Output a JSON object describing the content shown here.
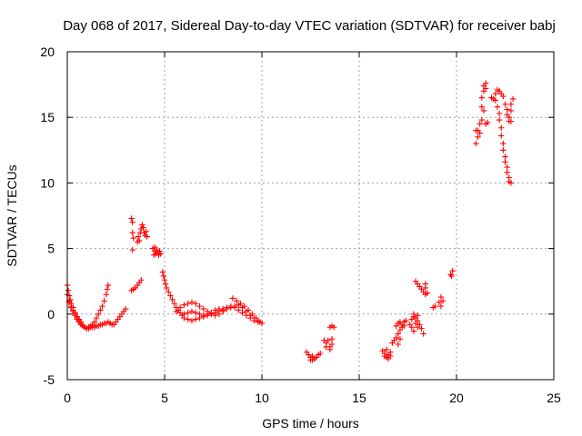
{
  "chart_data": {
    "type": "scatter",
    "title": "Day 068 of 2017, Sidereal Day-to-day VTEC variation (SDTVAR) for receiver babj",
    "xlabel": "GPS time / hours",
    "ylabel": "SDTVAR / TECUs",
    "xlim": [
      0,
      25
    ],
    "ylim": [
      -5,
      20
    ],
    "xticks": [
      "0",
      "5",
      "10",
      "15",
      "20",
      "25"
    ],
    "yticks": [
      "-5",
      "0",
      "5",
      "10",
      "15",
      "20"
    ],
    "grid": true,
    "marker": "+",
    "series": [
      {
        "name": "SDTVAR",
        "color": "#ff0000",
        "points": [
          [
            0.0,
            2.2
          ],
          [
            0.05,
            1.8
          ],
          [
            0.1,
            1.4
          ],
          [
            0.15,
            1.1
          ],
          [
            0.2,
            0.8
          ],
          [
            0.3,
            0.5
          ],
          [
            0.4,
            0.1
          ],
          [
            0.5,
            -0.2
          ],
          [
            0.6,
            -0.5
          ],
          [
            0.7,
            -0.7
          ],
          [
            0.8,
            -0.9
          ],
          [
            0.9,
            -1.0
          ],
          [
            1.0,
            -1.1
          ],
          [
            1.1,
            -1.0
          ],
          [
            1.2,
            -0.9
          ],
          [
            1.3,
            -0.8
          ],
          [
            1.4,
            -0.6
          ],
          [
            1.5,
            -0.3
          ],
          [
            1.6,
            0.0
          ],
          [
            1.7,
            0.3
          ],
          [
            1.8,
            0.6
          ],
          [
            1.9,
            1.0
          ],
          [
            2.0,
            1.5
          ],
          [
            2.05,
            1.9
          ],
          [
            2.1,
            2.2
          ],
          [
            0.0,
            1.5
          ],
          [
            0.1,
            1.0
          ],
          [
            0.2,
            0.6
          ],
          [
            0.3,
            0.2
          ],
          [
            0.4,
            -0.1
          ],
          [
            0.5,
            -0.4
          ],
          [
            0.6,
            -0.6
          ],
          [
            0.7,
            -0.8
          ],
          [
            0.8,
            -0.9
          ],
          [
            0.9,
            -1.0
          ],
          [
            1.0,
            -1.1
          ],
          [
            1.1,
            -1.1
          ],
          [
            1.2,
            -1.0
          ],
          [
            1.3,
            -1.0
          ],
          [
            1.4,
            -1.0
          ],
          [
            1.5,
            -0.9
          ],
          [
            1.6,
            -0.9
          ],
          [
            1.7,
            -0.8
          ],
          [
            1.8,
            -0.8
          ],
          [
            1.9,
            -0.7
          ],
          [
            2.0,
            -0.7
          ],
          [
            2.1,
            -0.6
          ],
          [
            2.2,
            -0.7
          ],
          [
            2.3,
            -0.8
          ],
          [
            2.4,
            -0.8
          ],
          [
            2.5,
            -0.6
          ],
          [
            2.6,
            -0.4
          ],
          [
            2.7,
            -0.2
          ],
          [
            2.8,
            0.0
          ],
          [
            2.9,
            0.2
          ],
          [
            3.0,
            0.4
          ],
          [
            0.1,
            0.9
          ],
          [
            0.2,
            0.5
          ],
          [
            0.3,
            0.3
          ],
          [
            0.4,
            0.0
          ],
          [
            0.5,
            -0.3
          ],
          [
            0.6,
            -0.4
          ],
          [
            0.7,
            -0.6
          ],
          [
            3.3,
            1.8
          ],
          [
            3.4,
            1.9
          ],
          [
            3.5,
            2.0
          ],
          [
            3.6,
            2.2
          ],
          [
            3.7,
            2.4
          ],
          [
            3.8,
            2.6
          ],
          [
            3.3,
            7.3
          ],
          [
            3.35,
            7.0
          ],
          [
            3.35,
            6.2
          ],
          [
            3.4,
            5.8
          ],
          [
            3.35,
            4.9
          ],
          [
            3.6,
            5.5
          ],
          [
            3.65,
            5.9
          ],
          [
            3.7,
            5.6
          ],
          [
            3.75,
            6.2
          ],
          [
            3.8,
            6.5
          ],
          [
            3.85,
            6.8
          ],
          [
            3.9,
            6.6
          ],
          [
            3.95,
            6.2
          ],
          [
            4.0,
            6.0
          ],
          [
            4.05,
            6.3
          ],
          [
            4.1,
            5.9
          ],
          [
            4.4,
            5.0
          ],
          [
            4.5,
            4.8
          ],
          [
            4.55,
            4.6
          ],
          [
            4.6,
            4.9
          ],
          [
            4.65,
            4.7
          ],
          [
            4.7,
            4.5
          ],
          [
            4.75,
            4.8
          ],
          [
            4.8,
            4.6
          ],
          [
            4.45,
            4.5
          ],
          [
            4.5,
            5.1
          ],
          [
            4.9,
            3.2
          ],
          [
            4.95,
            2.9
          ],
          [
            5.0,
            2.6
          ],
          [
            5.05,
            2.3
          ],
          [
            5.1,
            2.0
          ],
          [
            5.2,
            1.7
          ],
          [
            5.3,
            1.4
          ],
          [
            5.4,
            1.1
          ],
          [
            5.5,
            0.8
          ],
          [
            5.6,
            0.5
          ],
          [
            5.7,
            0.3
          ],
          [
            5.8,
            0.1
          ],
          [
            5.9,
            -0.1
          ],
          [
            6.0,
            -0.3
          ],
          [
            6.2,
            -0.4
          ],
          [
            6.4,
            -0.5
          ],
          [
            6.6,
            -0.4
          ],
          [
            6.8,
            -0.3
          ],
          [
            7.0,
            -0.2
          ],
          [
            7.2,
            -0.1
          ],
          [
            7.4,
            0.0
          ],
          [
            7.6,
            0.1
          ],
          [
            7.8,
            0.2
          ],
          [
            8.0,
            0.3
          ],
          [
            8.2,
            0.5
          ],
          [
            8.4,
            0.6
          ],
          [
            8.6,
            0.5
          ],
          [
            8.8,
            0.3
          ],
          [
            9.0,
            0.1
          ],
          [
            9.2,
            -0.1
          ],
          [
            9.4,
            -0.3
          ],
          [
            9.6,
            -0.5
          ],
          [
            9.8,
            -0.6
          ],
          [
            10.0,
            -0.7
          ],
          [
            5.6,
            0.2
          ],
          [
            5.8,
            0.5
          ],
          [
            6.0,
            0.7
          ],
          [
            6.2,
            0.8
          ],
          [
            6.4,
            0.9
          ],
          [
            6.6,
            0.8
          ],
          [
            6.8,
            0.6
          ],
          [
            7.0,
            0.4
          ],
          [
            7.2,
            0.2
          ],
          [
            7.4,
            0.0
          ],
          [
            7.6,
            -0.1
          ],
          [
            7.8,
            0.0
          ],
          [
            8.0,
            0.2
          ],
          [
            8.2,
            0.4
          ],
          [
            8.4,
            0.5
          ],
          [
            8.6,
            0.6
          ],
          [
            8.8,
            0.7
          ],
          [
            9.0,
            0.5
          ],
          [
            9.2,
            0.2
          ],
          [
            9.4,
            -0.1
          ],
          [
            9.6,
            -0.3
          ],
          [
            9.8,
            -0.5
          ],
          [
            6.0,
            0.0
          ],
          [
            6.2,
            0.1
          ],
          [
            6.4,
            0.2
          ],
          [
            6.6,
            0.1
          ],
          [
            6.8,
            0.0
          ],
          [
            7.0,
            -0.1
          ],
          [
            7.2,
            0.0
          ],
          [
            7.4,
            0.1
          ],
          [
            7.6,
            0.3
          ],
          [
            7.8,
            0.4
          ],
          [
            8.0,
            0.4
          ],
          [
            8.5,
            1.2
          ],
          [
            8.7,
            1.0
          ],
          [
            8.9,
            0.8
          ],
          [
            9.1,
            0.6
          ],
          [
            9.3,
            0.3
          ],
          [
            9.5,
            0.0
          ],
          [
            9.7,
            -0.3
          ],
          [
            9.9,
            -0.6
          ],
          [
            12.3,
            -2.9
          ],
          [
            12.4,
            -3.1
          ],
          [
            12.5,
            -3.3
          ],
          [
            12.6,
            -3.5
          ],
          [
            12.7,
            -3.4
          ],
          [
            12.8,
            -3.3
          ],
          [
            12.9,
            -3.1
          ],
          [
            13.0,
            -3.0
          ],
          [
            12.5,
            -3.5
          ],
          [
            12.6,
            -3.2
          ],
          [
            13.2,
            -2.0
          ],
          [
            13.3,
            -2.2
          ],
          [
            13.3,
            -2.5
          ],
          [
            13.4,
            -2.0
          ],
          [
            13.5,
            -2.5
          ],
          [
            13.5,
            -2.7
          ],
          [
            13.6,
            -2.3
          ],
          [
            13.6,
            -1.9
          ],
          [
            13.5,
            -1.0
          ],
          [
            13.6,
            -0.9
          ],
          [
            13.7,
            -1.0
          ],
          [
            16.2,
            -2.8
          ],
          [
            16.3,
            -3.0
          ],
          [
            16.3,
            -3.2
          ],
          [
            16.4,
            -3.3
          ],
          [
            16.5,
            -3.4
          ],
          [
            16.5,
            -3.1
          ],
          [
            16.6,
            -2.9
          ],
          [
            16.6,
            -3.2
          ],
          [
            16.4,
            -2.7
          ],
          [
            16.7,
            -2.2
          ],
          [
            16.8,
            -2.0
          ],
          [
            16.9,
            -1.8
          ],
          [
            17.0,
            -1.5
          ],
          [
            17.1,
            -1.2
          ],
          [
            17.2,
            -1.0
          ],
          [
            17.0,
            -2.3
          ],
          [
            17.1,
            -1.9
          ],
          [
            16.9,
            -0.9
          ],
          [
            17.0,
            -0.7
          ],
          [
            17.1,
            -0.6
          ],
          [
            17.2,
            -0.8
          ],
          [
            17.3,
            -0.6
          ],
          [
            17.4,
            -0.5
          ],
          [
            17.3,
            -0.9
          ],
          [
            17.6,
            -0.8
          ],
          [
            17.7,
            -0.4
          ],
          [
            17.8,
            -0.2
          ],
          [
            17.8,
            0.0
          ],
          [
            17.9,
            -0.3
          ],
          [
            18.0,
            -0.5
          ],
          [
            18.0,
            -0.1
          ],
          [
            18.1,
            -0.8
          ],
          [
            18.2,
            -1.1
          ],
          [
            18.3,
            -1.5
          ],
          [
            17.9,
            -0.7
          ],
          [
            18.0,
            -1.0
          ],
          [
            17.7,
            -1.0
          ],
          [
            17.8,
            -1.3
          ],
          [
            17.9,
            2.5
          ],
          [
            18.0,
            2.3
          ],
          [
            18.1,
            2.1
          ],
          [
            18.2,
            1.9
          ],
          [
            18.3,
            1.7
          ],
          [
            18.4,
            1.5
          ],
          [
            18.4,
            2.0
          ],
          [
            18.5,
            1.6
          ],
          [
            18.4,
            2.3
          ],
          [
            18.8,
            0.5
          ],
          [
            18.9,
            0.6
          ],
          [
            19.1,
            0.9
          ],
          [
            19.2,
            1.3
          ],
          [
            19.3,
            1.0
          ],
          [
            19.2,
            0.6
          ],
          [
            19.7,
            3.0
          ],
          [
            19.8,
            3.3
          ],
          [
            19.75,
            2.9
          ],
          [
            21.0,
            13.0
          ],
          [
            21.1,
            13.5
          ],
          [
            21.1,
            14.0
          ],
          [
            21.2,
            14.5
          ],
          [
            21.2,
            13.8
          ],
          [
            21.3,
            14.8
          ],
          [
            21.3,
            15.8
          ],
          [
            21.3,
            16.5
          ],
          [
            21.4,
            17.0
          ],
          [
            21.4,
            17.4
          ],
          [
            21.5,
            17.6
          ],
          [
            21.5,
            17.2
          ],
          [
            21.4,
            15.5
          ],
          [
            21.5,
            14.5
          ],
          [
            21.6,
            14.6
          ],
          [
            21.0,
            14.0
          ],
          [
            21.8,
            16.5
          ],
          [
            21.9,
            16.4
          ],
          [
            22.0,
            16.3
          ],
          [
            22.0,
            16.8
          ],
          [
            22.1,
            17.1
          ],
          [
            22.2,
            17.0
          ],
          [
            22.3,
            16.8
          ],
          [
            22.4,
            16.6
          ],
          [
            22.1,
            15.8
          ],
          [
            22.2,
            15.3
          ],
          [
            22.2,
            14.8
          ],
          [
            22.3,
            14.2
          ],
          [
            22.3,
            13.6
          ],
          [
            22.4,
            13.0
          ],
          [
            22.4,
            12.5
          ],
          [
            22.5,
            12.0
          ],
          [
            22.5,
            11.6
          ],
          [
            22.6,
            11.2
          ],
          [
            22.6,
            10.8
          ],
          [
            22.7,
            10.4
          ],
          [
            22.7,
            10.1
          ],
          [
            22.8,
            10.0
          ],
          [
            22.5,
            16.0
          ],
          [
            22.6,
            15.6
          ],
          [
            22.6,
            15.2
          ],
          [
            22.7,
            15.0
          ],
          [
            22.7,
            14.7
          ],
          [
            22.8,
            15.5
          ],
          [
            22.8,
            16.0
          ],
          [
            22.9,
            16.4
          ],
          [
            22.8,
            14.7
          ]
        ]
      }
    ]
  }
}
